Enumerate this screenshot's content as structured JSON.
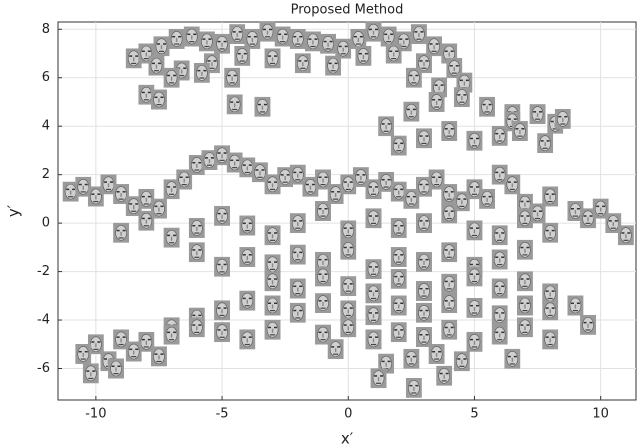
{
  "chart_data": {
    "type": "scatter",
    "title": "Proposed Method",
    "x_label": "x′",
    "y_label": "y′",
    "xlim": [
      -11.5,
      11.4
    ],
    "ylim": [
      -7.3,
      8.3
    ],
    "xticks": [
      -10,
      -5,
      0,
      5,
      10
    ],
    "yticks": [
      -6,
      -4,
      -2,
      0,
      2,
      4,
      6,
      8
    ],
    "grid": true,
    "color": "#9a9a9a",
    "x": [
      -8.5,
      -8,
      -7.4,
      -6.8,
      -6.2,
      -5.6,
      -5,
      -4.4,
      -3.8,
      -3.2,
      -2.6,
      -2,
      -1.4,
      -0.8,
      -0.2,
      0.4,
      1,
      1.6,
      2.2,
      2.8,
      3.4,
      4,
      -7.6,
      -6.6,
      -5.4,
      -4.2,
      -3,
      -1.8,
      -0.6,
      0.6,
      1.8,
      3,
      4.2,
      -7,
      -5.8,
      -4.6,
      2.6,
      3.6,
      4.6,
      1.5,
      2.5,
      3.5,
      4.5,
      5.5,
      6.5,
      2,
      3,
      4,
      5,
      6,
      -8,
      -7.5,
      -4.5,
      -3.4,
      6.5,
      7.5,
      8.2,
      6.8,
      7.8,
      8.5,
      -11,
      -10.5,
      -10,
      -9.5,
      -9,
      -8.5,
      -8,
      -7.5,
      -7,
      -6.5,
      -6,
      -5.5,
      -5,
      -4.5,
      -4,
      -3.5,
      -3,
      -2.5,
      -2,
      -1.5,
      -1,
      -0.5,
      0,
      0.5,
      1,
      1.5,
      2,
      2.5,
      3,
      3.5,
      4,
      4.5,
      5,
      5.5,
      6,
      6.5,
      7,
      7.5,
      8,
      -9,
      -8,
      -7,
      -6,
      -5,
      -4,
      -3,
      -2,
      -1,
      0,
      1,
      2,
      3,
      4,
      5,
      6,
      7,
      8,
      -6,
      -5,
      -4,
      -3,
      -2,
      -1,
      0,
      1,
      2,
      3,
      4,
      5,
      6,
      7,
      9,
      9.5,
      10,
      10.5,
      11,
      -3,
      -2,
      -1,
      0,
      1,
      2,
      3,
      4,
      5,
      6,
      7,
      8,
      -7,
      -6,
      -5,
      -4,
      -3,
      -2,
      -1,
      0,
      1,
      2,
      3,
      4,
      5,
      6,
      7,
      8,
      9,
      -10,
      -9,
      -8,
      -7,
      -6,
      -5,
      -4,
      -3,
      -1,
      0,
      1,
      2,
      3,
      4,
      5,
      6,
      7,
      8,
      9.5,
      -10.5,
      -9.5,
      -8.5,
      -7.5,
      -0.5,
      1.5,
      2.5,
      3.5,
      4.5,
      6.5,
      -10.2,
      -9.2,
      1.2,
      2.6,
      3.8
    ],
    "y": [
      6.8,
      7.0,
      7.3,
      7.6,
      7.7,
      7.5,
      7.4,
      7.8,
      7.6,
      7.9,
      7.7,
      7.6,
      7.5,
      7.4,
      7.2,
      7.6,
      7.9,
      7.7,
      7.5,
      7.8,
      7.3,
      7.0,
      6.5,
      6.3,
      6.6,
      6.9,
      6.8,
      6.6,
      6.5,
      6.9,
      7.0,
      6.6,
      6.4,
      6.0,
      6.2,
      6.0,
      6.0,
      5.6,
      5.8,
      4.0,
      4.6,
      5.0,
      5.2,
      4.8,
      4.5,
      3.2,
      3.5,
      3.8,
      3.4,
      3.6,
      5.3,
      5.1,
      4.9,
      4.8,
      4.2,
      4.5,
      4.1,
      3.8,
      3.3,
      4.3,
      1.3,
      1.5,
      1.1,
      1.6,
      1.2,
      0.7,
      1.0,
      0.6,
      1.4,
      1.8,
      2.4,
      2.6,
      2.8,
      2.5,
      2.3,
      2.1,
      1.6,
      1.9,
      2.0,
      1.5,
      1.8,
      1.2,
      1.6,
      1.9,
      1.4,
      1.7,
      1.3,
      1.0,
      1.5,
      1.8,
      1.2,
      0.9,
      1.4,
      1.0,
      2.0,
      1.6,
      0.8,
      0.4,
      1.1,
      -0.4,
      0.1,
      -0.6,
      -0.2,
      0.3,
      -0.1,
      -0.5,
      0.0,
      0.5,
      -0.3,
      0.2,
      -0.2,
      0.0,
      0.4,
      -0.3,
      -0.5,
      0.2,
      -0.4,
      -1.2,
      -1.8,
      -1.4,
      -1.7,
      -1.3,
      -1.6,
      -1.1,
      -1.9,
      -1.4,
      -1.6,
      -1.2,
      -1.8,
      -1.5,
      -1.1,
      0.5,
      0.2,
      0.6,
      0.0,
      -0.5,
      -2.4,
      -2.7,
      -2.2,
      -2.6,
      -2.9,
      -2.3,
      -2.8,
      -2.5,
      -2.2,
      -2.7,
      -2.4,
      -2.9,
      -4.3,
      -3.9,
      -3.6,
      -3.2,
      -3.4,
      -3.7,
      -3.3,
      -3.6,
      -3.8,
      -3.4,
      -3.7,
      -3.3,
      -3.5,
      -3.8,
      -3.4,
      -3.6,
      -3.4,
      -5.0,
      -4.8,
      -4.9,
      -4.6,
      -4.3,
      -4.5,
      -4.8,
      -4.4,
      -4.6,
      -4.3,
      -4.8,
      -4.5,
      -4.7,
      -4.4,
      -4.9,
      -4.6,
      -4.3,
      -4.8,
      -4.2,
      -5.4,
      -5.7,
      -5.3,
      -5.5,
      -5.2,
      -5.8,
      -5.6,
      -5.4,
      -5.7,
      -5.6,
      -6.2,
      -6.0,
      -6.4,
      -6.8,
      -6.3
    ]
  }
}
